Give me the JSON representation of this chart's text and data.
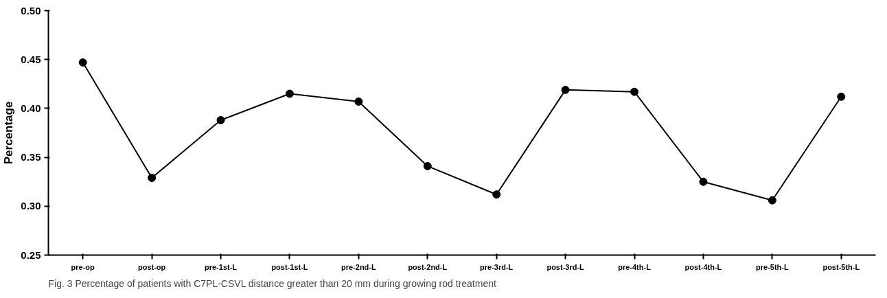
{
  "chart_data": {
    "type": "line",
    "ylabel": "Percentage",
    "categories": [
      "pre-op",
      "post-op",
      "pre-1st-L",
      "post-1st-L",
      "pre-2nd-L",
      "post-2nd-L",
      "pre-3rd-L",
      "post-3rd-L",
      "pre-4th-L",
      "post-4th-L",
      "pre-5th-L",
      "post-5th-L"
    ],
    "series": [
      {
        "color": "#000000",
        "values": [
          0.447,
          0.329,
          0.388,
          0.415,
          0.407,
          0.341,
          0.312,
          0.419,
          0.417,
          0.325,
          0.306,
          0.412
        ]
      }
    ],
    "ylim": [
      0.25,
      0.5
    ],
    "yticks": [
      0.25,
      {
        "value": 0.3,
        "label": "0.30"
      },
      0.35,
      {
        "value": 0.4,
        "label": "0.40"
      },
      0.45,
      {
        "value": 0.5,
        "label": "0.50"
      }
    ],
    "marker": "circle",
    "line_style": "solid",
    "grid": false,
    "annotations": [
      "Fig. 3 Percentage of patients with C7PL-CSVL distance greater than 20 mm during growing rod treatment"
    ]
  }
}
